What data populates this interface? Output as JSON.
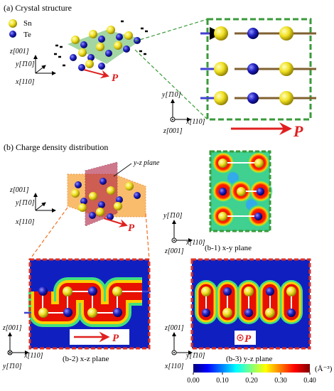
{
  "panel_a": {
    "title": "(a) Crystal structure",
    "legend": [
      "Sn",
      "Te"
    ],
    "axes_left": [
      "z[001]",
      "y[1̄10]",
      "x[110]"
    ],
    "polarization_left": "P",
    "axes_right": [
      "y[1̄10]",
      "x[110]",
      "z[001]"
    ],
    "polarization_right": "P"
  },
  "panel_b": {
    "title": "(b) Charge density distribution",
    "plane_label": "y-z plane",
    "axes_left": [
      "z[001]",
      "y[1̄10]",
      "x[110]"
    ],
    "polarization_left": "P",
    "b1": {
      "label": "(b-1) x-y plane",
      "axes": [
        "y[1̄10]",
        "x[110]",
        "z[001]"
      ]
    },
    "b2": {
      "label": "(b-2) x-z plane",
      "axes": [
        "z[001]",
        "x[110]",
        "y[1̄10]"
      ],
      "polarization": "P"
    },
    "b3": {
      "label": "(b-3) y-z plane",
      "axes": [
        "z[001]",
        "y[1̄10]",
        "x[110]"
      ],
      "polarization": "P"
    }
  },
  "colorbar": {
    "range": [
      0,
      0.4
    ],
    "ticks": [
      {
        "value": 0,
        "label": "0.00"
      },
      {
        "value": 0.1,
        "label": "0.10"
      },
      {
        "value": 0.2,
        "label": "0.20"
      },
      {
        "value": 0.3,
        "label": "0.30"
      },
      {
        "value": 0.4,
        "label": "0.40"
      }
    ],
    "unit": "(Å⁻³)"
  }
}
